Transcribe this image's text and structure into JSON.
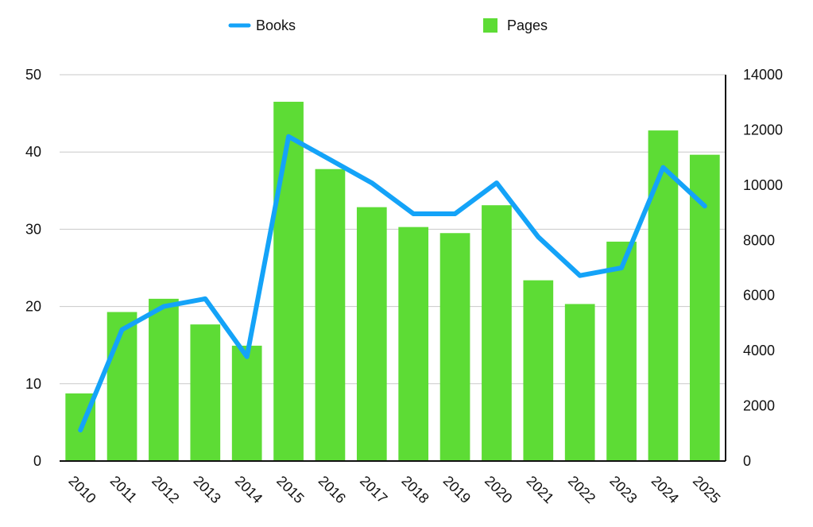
{
  "chart_data": {
    "type": "bar",
    "categories": [
      "2010",
      "2011",
      "2012",
      "2013",
      "2014",
      "2015",
      "2016",
      "2017",
      "2018",
      "2019",
      "2020",
      "2021",
      "2022",
      "2023",
      "2024",
      "2025"
    ],
    "series": [
      {
        "name": "Pages",
        "type": "bar",
        "axis": "right",
        "color": "#5ddc35",
        "values": [
          2450,
          5400,
          5880,
          4950,
          4180,
          13020,
          10580,
          9200,
          8480,
          8260,
          9270,
          6550,
          5690,
          7950,
          11980,
          11100
        ]
      },
      {
        "name": "Books",
        "type": "line",
        "axis": "left",
        "color": "#14a3f8",
        "values": [
          4,
          17,
          20,
          21,
          13.5,
          42,
          39,
          36,
          32,
          32,
          36,
          29,
          24,
          25,
          38,
          33
        ]
      }
    ],
    "y_left": {
      "min": 0,
      "max": 50,
      "ticks": [
        "0",
        "10",
        "20",
        "30",
        "40",
        "50"
      ]
    },
    "y_right": {
      "min": 0,
      "max": 14000,
      "ticks": [
        "0",
        "2000",
        "4000",
        "6000",
        "8000",
        "10000",
        "12000",
        "14000"
      ]
    },
    "grid": true,
    "legend": {
      "position": "top-center",
      "items": [
        {
          "label": "Books",
          "marker": "line",
          "color": "#14a3f8"
        },
        {
          "label": "Pages",
          "marker": "square",
          "color": "#5ddc35"
        }
      ]
    }
  }
}
